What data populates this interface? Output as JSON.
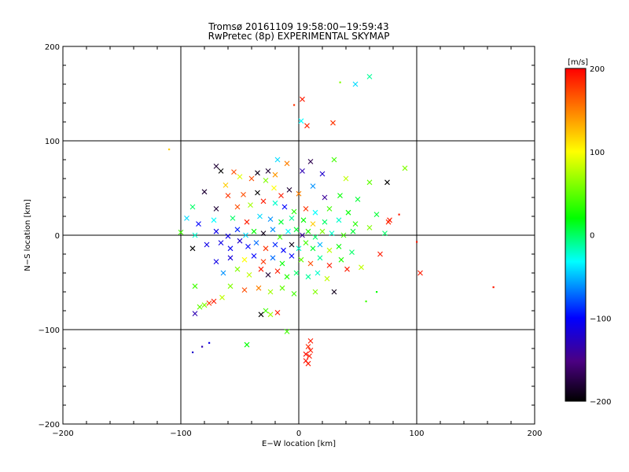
{
  "chart_data": {
    "type": "scatter",
    "title": "Tromsø 20161109 19:58:00−19:59:43",
    "subtitle": "RwPretec (8p) EXPERIMENTAL SKYMAP",
    "xlabel": "E−W location [km]",
    "ylabel": "N−S location [km]",
    "xlim": [
      -200,
      200
    ],
    "ylim": [
      -200,
      200
    ],
    "x_ticks": [
      -200,
      -100,
      0,
      100,
      200
    ],
    "y_ticks": [
      -200,
      -100,
      0,
      100,
      200
    ],
    "x_tick_labels": [
      "−200",
      "−100",
      "0",
      "100",
      "200"
    ],
    "y_tick_labels": [
      "−200",
      "−100",
      "0",
      "100",
      "200"
    ],
    "grid": true,
    "colorbar": {
      "label": "[m/s]",
      "range": [
        -200,
        200
      ],
      "ticks": [
        200,
        100,
        0,
        -100,
        -200
      ],
      "tick_labels": [
        "200",
        "100",
        "0",
        "−100",
        "−200"
      ],
      "colormap": [
        "#000000",
        "#4b0082",
        "#0000ff",
        "#00ffff",
        "#00ff00",
        "#ffff00",
        "#ff0000"
      ]
    },
    "points": [
      {
        "x": 3,
        "y": 144,
        "v": 190,
        "m": "x"
      },
      {
        "x": 7,
        "y": 116,
        "v": 185,
        "m": "x"
      },
      {
        "x": 2,
        "y": 121,
        "v": -30,
        "m": "x"
      },
      {
        "x": 29,
        "y": 119,
        "v": 180,
        "m": "x"
      },
      {
        "x": 48,
        "y": 160,
        "v": -40,
        "m": "x"
      },
      {
        "x": 60,
        "y": 168,
        "v": -10,
        "m": "x"
      },
      {
        "x": 35,
        "y": 162,
        "v": 60,
        "m": "d"
      },
      {
        "x": -4,
        "y": 138,
        "v": 180,
        "m": "d"
      },
      {
        "x": -110,
        "y": 91,
        "v": 120,
        "m": "d"
      },
      {
        "x": -70,
        "y": 73,
        "v": -180,
        "m": "x"
      },
      {
        "x": -66,
        "y": 68,
        "v": -200,
        "m": "x"
      },
      {
        "x": -55,
        "y": 67,
        "v": 170,
        "m": "x"
      },
      {
        "x": -62,
        "y": 53,
        "v": 120,
        "m": "x"
      },
      {
        "x": -50,
        "y": 62,
        "v": 90,
        "m": "x"
      },
      {
        "x": -40,
        "y": 60,
        "v": 170,
        "m": "x"
      },
      {
        "x": -35,
        "y": 66,
        "v": -190,
        "m": "x"
      },
      {
        "x": -26,
        "y": 68,
        "v": -180,
        "m": "x"
      },
      {
        "x": -18,
        "y": 80,
        "v": -40,
        "m": "x"
      },
      {
        "x": -20,
        "y": 64,
        "v": 140,
        "m": "x"
      },
      {
        "x": -10,
        "y": 76,
        "v": 150,
        "m": "x"
      },
      {
        "x": 3,
        "y": 68,
        "v": -130,
        "m": "x"
      },
      {
        "x": 10,
        "y": 78,
        "v": -170,
        "m": "x"
      },
      {
        "x": 20,
        "y": 65,
        "v": -120,
        "m": "x"
      },
      {
        "x": 30,
        "y": 80,
        "v": 40,
        "m": "x"
      },
      {
        "x": 40,
        "y": 60,
        "v": 80,
        "m": "x"
      },
      {
        "x": 60,
        "y": 56,
        "v": 50,
        "m": "x"
      },
      {
        "x": 75,
        "y": 56,
        "v": -200,
        "m": "x"
      },
      {
        "x": 90,
        "y": 71,
        "v": 60,
        "m": "x"
      },
      {
        "x": -80,
        "y": 46,
        "v": -180,
        "m": "x"
      },
      {
        "x": -60,
        "y": 42,
        "v": 180,
        "m": "x"
      },
      {
        "x": -47,
        "y": 43,
        "v": 170,
        "m": "x"
      },
      {
        "x": -35,
        "y": 45,
        "v": -200,
        "m": "x"
      },
      {
        "x": -28,
        "y": 58,
        "v": 60,
        "m": "x"
      },
      {
        "x": -21,
        "y": 50,
        "v": 100,
        "m": "x"
      },
      {
        "x": -15,
        "y": 42,
        "v": 190,
        "m": "x"
      },
      {
        "x": -8,
        "y": 48,
        "v": -180,
        "m": "x"
      },
      {
        "x": 0,
        "y": 44,
        "v": 150,
        "m": "x"
      },
      {
        "x": 12,
        "y": 52,
        "v": -60,
        "m": "x"
      },
      {
        "x": 22,
        "y": 40,
        "v": -140,
        "m": "x"
      },
      {
        "x": 35,
        "y": 42,
        "v": 20,
        "m": "x"
      },
      {
        "x": 50,
        "y": 38,
        "v": 10,
        "m": "x"
      },
      {
        "x": -90,
        "y": 30,
        "v": 0,
        "m": "x"
      },
      {
        "x": -70,
        "y": 28,
        "v": -180,
        "m": "x"
      },
      {
        "x": -52,
        "y": 30,
        "v": 170,
        "m": "x"
      },
      {
        "x": -41,
        "y": 32,
        "v": 70,
        "m": "x"
      },
      {
        "x": -30,
        "y": 36,
        "v": 190,
        "m": "x"
      },
      {
        "x": -20,
        "y": 34,
        "v": -20,
        "m": "x"
      },
      {
        "x": -12,
        "y": 30,
        "v": -100,
        "m": "x"
      },
      {
        "x": -4,
        "y": 25,
        "v": 30,
        "m": "x"
      },
      {
        "x": 6,
        "y": 28,
        "v": 180,
        "m": "x"
      },
      {
        "x": 14,
        "y": 24,
        "v": -30,
        "m": "x"
      },
      {
        "x": 26,
        "y": 28,
        "v": 40,
        "m": "x"
      },
      {
        "x": 42,
        "y": 24,
        "v": 20,
        "m": "x"
      },
      {
        "x": 66,
        "y": 22,
        "v": 10,
        "m": "x"
      },
      {
        "x": 77,
        "y": 16,
        "v": 190,
        "m": "x"
      },
      {
        "x": 76,
        "y": 14,
        "v": 185,
        "m": "x"
      },
      {
        "x": -95,
        "y": 18,
        "v": -40,
        "m": "x"
      },
      {
        "x": -85,
        "y": 12,
        "v": -100,
        "m": "x"
      },
      {
        "x": -72,
        "y": 16,
        "v": -30,
        "m": "x"
      },
      {
        "x": -56,
        "y": 18,
        "v": 0,
        "m": "x"
      },
      {
        "x": -44,
        "y": 14,
        "v": 190,
        "m": "x"
      },
      {
        "x": -33,
        "y": 20,
        "v": -40,
        "m": "x"
      },
      {
        "x": -24,
        "y": 17,
        "v": -60,
        "m": "x"
      },
      {
        "x": -15,
        "y": 14,
        "v": 10,
        "m": "x"
      },
      {
        "x": -6,
        "y": 18,
        "v": -10,
        "m": "x"
      },
      {
        "x": 4,
        "y": 16,
        "v": 20,
        "m": "x"
      },
      {
        "x": 12,
        "y": 12,
        "v": 120,
        "m": "x"
      },
      {
        "x": 22,
        "y": 14,
        "v": 0,
        "m": "x"
      },
      {
        "x": 34,
        "y": 16,
        "v": -20,
        "m": "x"
      },
      {
        "x": 48,
        "y": 12,
        "v": 30,
        "m": "x"
      },
      {
        "x": 60,
        "y": 8,
        "v": 60,
        "m": "x"
      },
      {
        "x": 73,
        "y": 2,
        "v": 0,
        "m": "x"
      },
      {
        "x": -100,
        "y": 3,
        "v": 40,
        "m": "x"
      },
      {
        "x": -88,
        "y": 0,
        "v": -20,
        "m": "x"
      },
      {
        "x": -70,
        "y": 4,
        "v": -110,
        "m": "x"
      },
      {
        "x": -60,
        "y": -1,
        "v": -110,
        "m": "x"
      },
      {
        "x": -52,
        "y": 6,
        "v": -90,
        "m": "x"
      },
      {
        "x": -45,
        "y": 0,
        "v": -40,
        "m": "x"
      },
      {
        "x": -38,
        "y": 4,
        "v": 20,
        "m": "x"
      },
      {
        "x": -30,
        "y": 2,
        "v": -190,
        "m": "x"
      },
      {
        "x": -22,
        "y": 6,
        "v": -60,
        "m": "x"
      },
      {
        "x": -16,
        "y": -2,
        "v": 40,
        "m": "x"
      },
      {
        "x": -9,
        "y": 4,
        "v": -30,
        "m": "x"
      },
      {
        "x": -2,
        "y": 6,
        "v": 10,
        "m": "x"
      },
      {
        "x": 3,
        "y": 0,
        "v": -140,
        "m": "x"
      },
      {
        "x": 8,
        "y": 4,
        "v": 30,
        "m": "x"
      },
      {
        "x": 14,
        "y": -2,
        "v": 0,
        "m": "x"
      },
      {
        "x": 20,
        "y": 4,
        "v": 60,
        "m": "x"
      },
      {
        "x": 28,
        "y": 2,
        "v": -20,
        "m": "x"
      },
      {
        "x": 38,
        "y": 0,
        "v": 40,
        "m": "x"
      },
      {
        "x": 46,
        "y": 4,
        "v": 10,
        "m": "x"
      },
      {
        "x": -90,
        "y": -14,
        "v": -200,
        "m": "x"
      },
      {
        "x": -78,
        "y": -10,
        "v": -110,
        "m": "x"
      },
      {
        "x": -66,
        "y": -8,
        "v": -110,
        "m": "x"
      },
      {
        "x": -58,
        "y": -14,
        "v": -105,
        "m": "x"
      },
      {
        "x": -50,
        "y": -6,
        "v": -120,
        "m": "x"
      },
      {
        "x": -43,
        "y": -12,
        "v": -100,
        "m": "x"
      },
      {
        "x": -36,
        "y": -8,
        "v": -70,
        "m": "x"
      },
      {
        "x": -28,
        "y": -14,
        "v": 180,
        "m": "x"
      },
      {
        "x": -20,
        "y": -10,
        "v": -90,
        "m": "x"
      },
      {
        "x": -13,
        "y": -16,
        "v": -100,
        "m": "x"
      },
      {
        "x": -6,
        "y": -10,
        "v": -190,
        "m": "x"
      },
      {
        "x": 0,
        "y": -14,
        "v": -20,
        "m": "x"
      },
      {
        "x": 6,
        "y": -8,
        "v": 40,
        "m": "x"
      },
      {
        "x": 12,
        "y": -14,
        "v": 10,
        "m": "x"
      },
      {
        "x": 18,
        "y": -10,
        "v": -50,
        "m": "x"
      },
      {
        "x": 26,
        "y": -16,
        "v": 80,
        "m": "x"
      },
      {
        "x": 34,
        "y": -12,
        "v": 20,
        "m": "x"
      },
      {
        "x": 45,
        "y": -18,
        "v": 0,
        "m": "x"
      },
      {
        "x": 69,
        "y": -20,
        "v": 190,
        "m": "x"
      },
      {
        "x": -70,
        "y": -28,
        "v": -110,
        "m": "x"
      },
      {
        "x": -58,
        "y": -24,
        "v": -115,
        "m": "x"
      },
      {
        "x": -46,
        "y": -26,
        "v": 100,
        "m": "x"
      },
      {
        "x": -38,
        "y": -22,
        "v": -100,
        "m": "x"
      },
      {
        "x": -30,
        "y": -28,
        "v": 180,
        "m": "x"
      },
      {
        "x": -22,
        "y": -24,
        "v": -70,
        "m": "x"
      },
      {
        "x": -14,
        "y": -30,
        "v": 20,
        "m": "x"
      },
      {
        "x": -6,
        "y": -22,
        "v": -100,
        "m": "x"
      },
      {
        "x": 2,
        "y": -26,
        "v": 50,
        "m": "x"
      },
      {
        "x": 10,
        "y": -30,
        "v": 170,
        "m": "x"
      },
      {
        "x": 18,
        "y": -24,
        "v": -10,
        "m": "x"
      },
      {
        "x": 26,
        "y": -32,
        "v": 190,
        "m": "x"
      },
      {
        "x": 36,
        "y": -26,
        "v": 30,
        "m": "x"
      },
      {
        "x": 41,
        "y": -36,
        "v": 190,
        "m": "x"
      },
      {
        "x": -64,
        "y": -40,
        "v": -60,
        "m": "x"
      },
      {
        "x": -52,
        "y": -36,
        "v": 60,
        "m": "x"
      },
      {
        "x": -42,
        "y": -42,
        "v": 80,
        "m": "x"
      },
      {
        "x": -32,
        "y": -36,
        "v": 190,
        "m": "x"
      },
      {
        "x": -26,
        "y": -42,
        "v": -180,
        "m": "x"
      },
      {
        "x": -18,
        "y": -38,
        "v": 190,
        "m": "x"
      },
      {
        "x": -10,
        "y": -44,
        "v": 30,
        "m": "x"
      },
      {
        "x": -2,
        "y": -40,
        "v": 0,
        "m": "x"
      },
      {
        "x": 8,
        "y": -44,
        "v": -10,
        "m": "x"
      },
      {
        "x": 16,
        "y": -40,
        "v": -20,
        "m": "x"
      },
      {
        "x": 24,
        "y": -46,
        "v": 80,
        "m": "x"
      },
      {
        "x": 53,
        "y": -34,
        "v": 80,
        "m": "x"
      },
      {
        "x": -58,
        "y": -54,
        "v": 60,
        "m": "x"
      },
      {
        "x": -46,
        "y": -58,
        "v": 170,
        "m": "x"
      },
      {
        "x": -34,
        "y": -56,
        "v": 150,
        "m": "x"
      },
      {
        "x": -24,
        "y": -60,
        "v": 70,
        "m": "x"
      },
      {
        "x": -14,
        "y": -56,
        "v": 50,
        "m": "x"
      },
      {
        "x": -4,
        "y": -62,
        "v": 40,
        "m": "x"
      },
      {
        "x": 14,
        "y": -60,
        "v": 60,
        "m": "x"
      },
      {
        "x": 30,
        "y": -60,
        "v": -190,
        "m": "x"
      },
      {
        "x": -88,
        "y": -54,
        "v": 40,
        "m": "x"
      },
      {
        "x": -65,
        "y": -66,
        "v": 80,
        "m": "x"
      },
      {
        "x": -72,
        "y": -70,
        "v": 190,
        "m": "x"
      },
      {
        "x": -76,
        "y": -72,
        "v": 180,
        "m": "x"
      },
      {
        "x": -80,
        "y": -74,
        "v": 60,
        "m": "x"
      },
      {
        "x": -84,
        "y": -76,
        "v": 50,
        "m": "x"
      },
      {
        "x": -88,
        "y": -83,
        "v": -130,
        "m": "x"
      },
      {
        "x": -28,
        "y": -80,
        "v": 40,
        "m": "x"
      },
      {
        "x": -18,
        "y": -82,
        "v": 190,
        "m": "x"
      },
      {
        "x": -24,
        "y": -84,
        "v": 70,
        "m": "x"
      },
      {
        "x": -32,
        "y": -84,
        "v": -200,
        "m": "x"
      },
      {
        "x": -44,
        "y": -116,
        "v": 20,
        "m": "x"
      },
      {
        "x": -10,
        "y": -102,
        "v": 40,
        "m": "x"
      },
      {
        "x": 10,
        "y": -112,
        "v": 190,
        "m": "x"
      },
      {
        "x": 8,
        "y": -118,
        "v": 185,
        "m": "x"
      },
      {
        "x": 10,
        "y": -122,
        "v": 190,
        "m": "x"
      },
      {
        "x": 6,
        "y": -126,
        "v": 195,
        "m": "x"
      },
      {
        "x": 9,
        "y": -128,
        "v": 190,
        "m": "x"
      },
      {
        "x": 6,
        "y": -133,
        "v": 195,
        "m": "x"
      },
      {
        "x": 8,
        "y": -136,
        "v": 190,
        "m": "x"
      },
      {
        "x": 103,
        "y": -40,
        "v": 190,
        "m": "x"
      },
      {
        "x": 66,
        "y": -60,
        "v": 20,
        "m": "d"
      },
      {
        "x": 57,
        "y": -70,
        "v": 40,
        "m": "d"
      },
      {
        "x": 165,
        "y": -55,
        "v": 190,
        "m": "d"
      },
      {
        "x": 100,
        "y": -7,
        "v": 190,
        "m": "d"
      },
      {
        "x": 85,
        "y": 22,
        "v": 190,
        "m": "d"
      },
      {
        "x": -90,
        "y": -124,
        "v": -120,
        "m": "d"
      },
      {
        "x": -82,
        "y": -118,
        "v": -130,
        "m": "d"
      },
      {
        "x": -76,
        "y": -114,
        "v": -110,
        "m": "d"
      }
    ]
  }
}
